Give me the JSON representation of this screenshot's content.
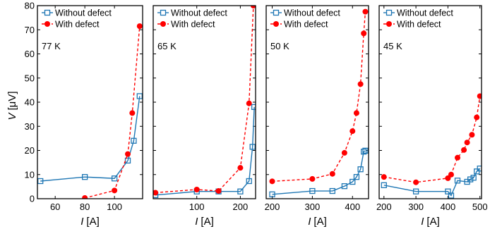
{
  "chart_data": {
    "type": "line",
    "ylabel": {
      "symbol": "V",
      "unit": "[μV]"
    },
    "xlabel": {
      "symbol": "I",
      "unit": "[A]"
    },
    "ylim": [
      0,
      80
    ],
    "yticks": [
      0,
      10,
      20,
      30,
      40,
      50,
      60,
      70,
      80
    ],
    "legend_placement": "top-left",
    "colors": {
      "without": "#1f77b4",
      "with": "#ff0000"
    },
    "panels": [
      {
        "temp": "77 K",
        "xlim": [
          48,
          119
        ],
        "xticks": [
          60,
          80,
          100
        ],
        "series": [
          {
            "name": "Without defect",
            "x": [
              50,
              80,
              100,
              109,
              113,
              117
            ],
            "y": [
              7.3,
              9,
              8.4,
              15.8,
              24,
              42.5
            ]
          },
          {
            "name": "With defect",
            "x": [
              80,
              100,
              109,
              112,
              117
            ],
            "y": [
              0.3,
              3.4,
              18.5,
              35.5,
              71.5
            ]
          }
        ]
      },
      {
        "temp": "65 K",
        "xlim": [
          0,
          235
        ],
        "xticks": [
          100,
          200
        ],
        "series": [
          {
            "name": "Without defect",
            "x": [
              5,
              100,
              150,
              200,
              220,
              228,
              232
            ],
            "y": [
              1.5,
              3,
              3,
              3,
              7.3,
              21.5,
              38
            ]
          },
          {
            "name": "With defect",
            "x": [
              5,
              100,
              150,
              200,
              220,
              230
            ],
            "y": [
              2.5,
              3.8,
              3.2,
              12.8,
              39.5,
              80
            ]
          }
        ]
      },
      {
        "temp": "50 K",
        "xlim": [
          185,
          440
        ],
        "xticks": [
          200,
          300,
          400
        ],
        "series": [
          {
            "name": "Without defect",
            "x": [
              200,
              300,
              350,
              380,
              400,
              410,
              420,
              428,
              432
            ],
            "y": [
              1.8,
              3.2,
              3.2,
              5.2,
              7,
              9,
              12.2,
              19.5,
              19.9
            ]
          },
          {
            "name": "With defect",
            "x": [
              200,
              300,
              350,
              380,
              400,
              410,
              420,
              428,
              432
            ],
            "y": [
              7.2,
              8.2,
              10.3,
              19,
              28,
              35.5,
              47.5,
              68.5,
              77.5
            ]
          }
        ]
      },
      {
        "temp": "45 K",
        "xlim": [
          185,
          505
        ],
        "xticks": [
          200,
          300,
          400,
          500
        ],
        "series": [
          {
            "name": "Without defect",
            "x": [
              200,
              300,
              400,
              410,
              430,
              460,
              470,
              480,
              490,
              500
            ],
            "y": [
              5.6,
              3,
              3,
              1.3,
              7.5,
              7,
              8,
              8.7,
              11.3,
              12.5
            ]
          },
          {
            "name": "With defect",
            "x": [
              200,
              300,
              400,
              410,
              430,
              450,
              460,
              475,
              490,
              500
            ],
            "y": [
              9,
              6.8,
              8.5,
              10,
              17,
              20.2,
              23.3,
              26.5,
              33.7,
              42.5
            ]
          }
        ]
      }
    ]
  }
}
